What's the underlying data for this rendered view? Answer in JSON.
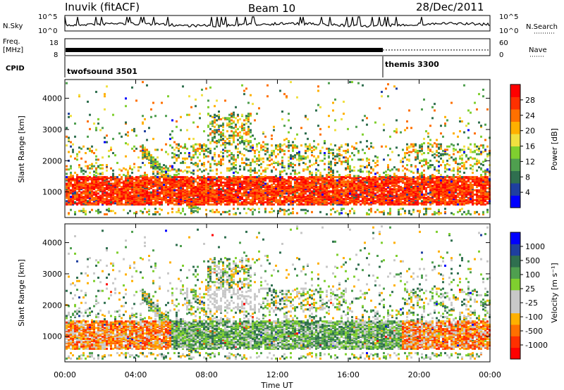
{
  "header": {
    "station": "Inuvik (fitACF)",
    "beam": "Beam 10",
    "date": "28/Dec/2011"
  },
  "strips": {
    "nsky": {
      "label": "N.Sky",
      "left_ticks": [
        "10^5",
        "10^0"
      ],
      "right_ticks": [
        "10^5",
        "10^0"
      ],
      "right_label": "N.Search"
    },
    "freq": {
      "label_top": "Freq.",
      "label_bottom": "[MHz]",
      "left_ticks": [
        "18",
        "8"
      ],
      "right_ticks": [
        "60",
        "0"
      ],
      "right_label": "Nave"
    },
    "cpid": {
      "label": "CPID",
      "programs": [
        {
          "name": "twofsound 3501",
          "start": "00:00"
        },
        {
          "name": "themis 3300",
          "start": "18:00"
        }
      ]
    }
  },
  "colors": {
    "power": [
      "#0000ff",
      "#1f3f9f",
      "#2f6f4f",
      "#4f9f4f",
      "#7fcf2f",
      "#f0e040",
      "#ffb000",
      "#ff7000",
      "#ff3000",
      "#ff0000"
    ],
    "velocity": [
      "#ff0000",
      "#ff3000",
      "#ff7000",
      "#ffb000",
      "#c8c8c8",
      "#c8c8c8",
      "#7fcf2f",
      "#4f9f4f",
      "#2f6f4f",
      "#1f3f9f",
      "#0000ff"
    ]
  },
  "chart_data": [
    {
      "type": "heatmap",
      "name": "power",
      "ylabel": "Slant Range [km]",
      "y_ticks": [
        1000,
        2000,
        3000,
        4000
      ],
      "ylim": [
        180,
        4600
      ],
      "colorbar": {
        "label": "Power [dB]",
        "ticks": [
          4,
          8,
          12,
          16,
          20,
          24,
          28
        ],
        "range": [
          0,
          30
        ]
      }
    },
    {
      "type": "heatmap",
      "name": "velocity",
      "ylabel": "Slant Range [km]",
      "y_ticks": [
        1000,
        2000,
        3000,
        4000
      ],
      "ylim": [
        180,
        4600
      ],
      "colorbar": {
        "label": "Velocity [m s⁻¹]",
        "ticks": [
          -1000,
          -500,
          -100,
          -25,
          25,
          100,
          500,
          1000
        ]
      }
    }
  ],
  "time_axis": {
    "label": "Time UT",
    "ticks": [
      "00:00",
      "04:00",
      "08:00",
      "12:00",
      "16:00",
      "20:00",
      "00:00"
    ],
    "range_hours": [
      0,
      24
    ]
  }
}
